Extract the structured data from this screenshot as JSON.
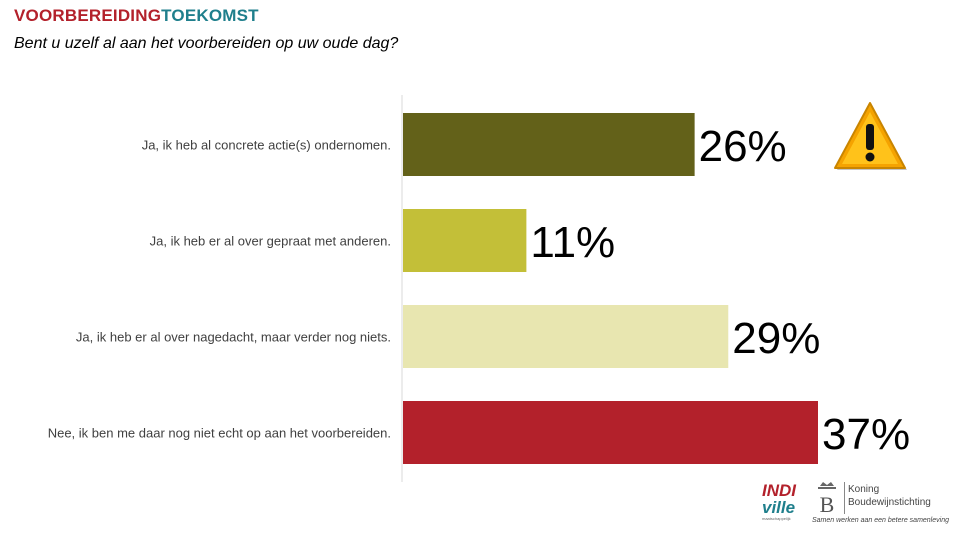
{
  "header": {
    "title_part1": "VOORBEREIDING",
    "title_part2": "TOEKOMST"
  },
  "subtitle": "Bent u uzelf al aan het voorbereiden op uw oude dag?",
  "chart_data": {
    "type": "bar",
    "orientation": "horizontal",
    "title": "Bent u uzelf al aan het voorbereiden op uw oude dag?",
    "categories": [
      "Ja, ik heb al concrete actie(s) ondernomen.",
      "Ja, ik heb er al over gepraat met anderen.",
      "Ja, ik heb er al over nagedacht, maar verder nog niets.",
      "Nee, ik ben me daar nog niet echt op aan het voorbereiden."
    ],
    "values": [
      26,
      11,
      29,
      37
    ],
    "labels": [
      "26%",
      "11%",
      "29%",
      "37%"
    ],
    "colors": [
      "#636119",
      "#c3bf38",
      "#e8e6b0",
      "#b3212b"
    ],
    "xlim": [
      0,
      37
    ],
    "unit": "%",
    "xlabel": "",
    "ylabel": "",
    "grid": false
  },
  "warning": {
    "icon": "warning-icon",
    "color": "#f5a300"
  },
  "logos": {
    "indiville": {
      "line1": "INDI",
      "line2": "ville",
      "line3": "maatschappelijk"
    },
    "kbs": {
      "emblem": "B",
      "name1": "Koning",
      "name2": "Boudewijnstichting",
      "tagline": "Samen werken aan een betere samenleving"
    }
  }
}
